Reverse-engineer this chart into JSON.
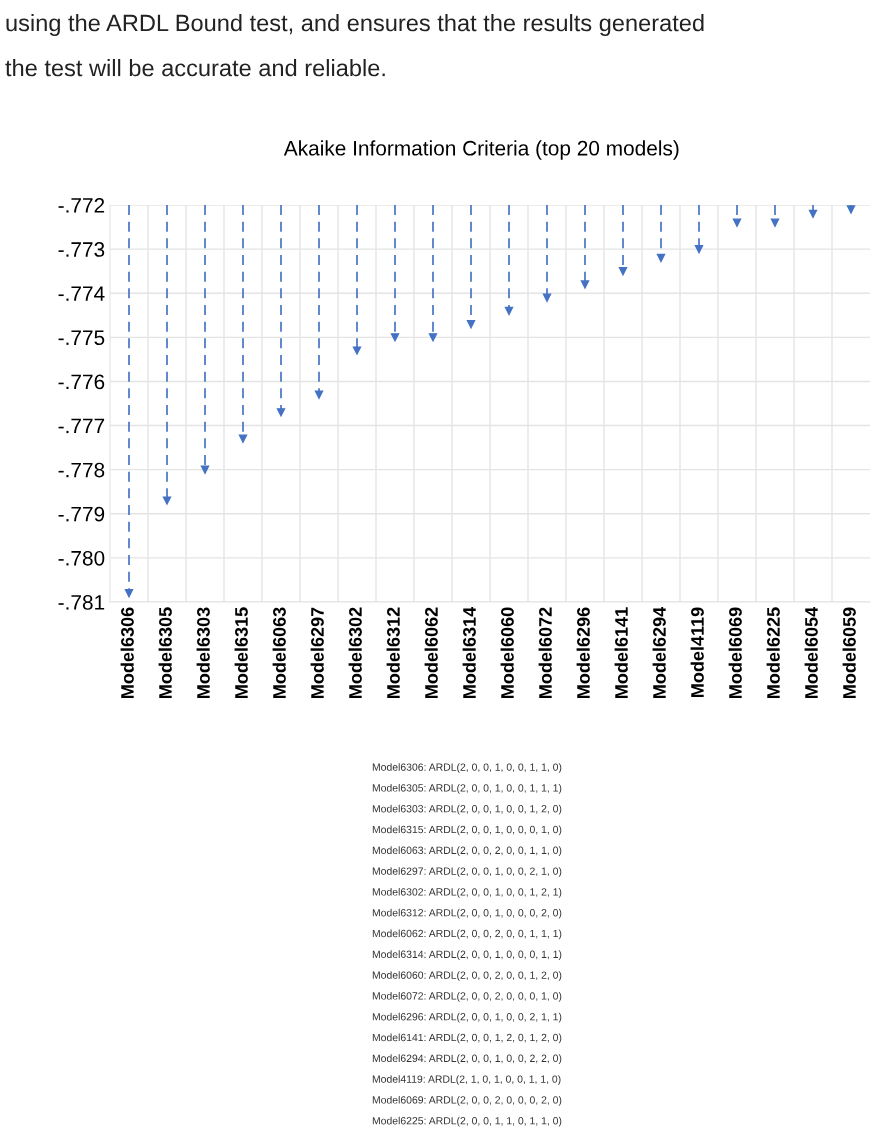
{
  "chart_data": {
    "type": "lollipop",
    "title": "Akaike Information Criteria (top 20 models)",
    "categories": [
      "Model6306",
      "Model6305",
      "Model6303",
      "Model6315",
      "Model6063",
      "Model6297",
      "Model6302",
      "Model6312",
      "Model6062",
      "Model6314",
      "Model6060",
      "Model6072",
      "Model6296",
      "Model6141",
      "Model6294",
      "Model4119",
      "Model6069",
      "Model6225",
      "Model6054",
      "Model6059"
    ],
    "values": [
      -0.7808,
      -0.7787,
      -0.778,
      -0.7773,
      -0.7767,
      -0.7763,
      -0.7753,
      -0.775,
      -0.775,
      -0.7747,
      -0.7744,
      -0.7741,
      -0.7738,
      -0.7735,
      -0.7732,
      -0.773,
      -0.7724,
      -0.7724,
      -0.7722,
      -0.7721
    ],
    "color": "#4472c4",
    "ylim": [
      -0.781,
      -0.772
    ],
    "yticks": [
      {
        "value": -0.781,
        "label": "-.781"
      },
      {
        "value": -0.78,
        "label": "-.780"
      },
      {
        "value": -0.779,
        "label": "-.779"
      },
      {
        "value": -0.778,
        "label": "-.778"
      },
      {
        "value": -0.777,
        "label": "-.777"
      },
      {
        "value": -0.776,
        "label": "-.776"
      },
      {
        "value": -0.775,
        "label": "-.775"
      },
      {
        "value": -0.774,
        "label": "-.774"
      },
      {
        "value": -0.773,
        "label": "-.773"
      },
      {
        "value": -0.772,
        "label": "-.772"
      }
    ],
    "grid": true,
    "marker": "triangle",
    "line_style": "dashed",
    "annotations": [
      "using the ARDL Bound test, and ensures that the results generated",
      "the test will be accurate and reliable.",
      "Model6306: ARDL(2, 0, 0, 1, 0, 0, 1, 1, 0)",
      "Model6305: ARDL(2, 0, 0, 1, 0, 0, 1, 1, 1)",
      "Model6303: ARDL(2, 0, 0, 1, 0, 0, 1, 2, 0)",
      "Model6315: ARDL(2, 0, 0, 1, 0, 0, 0, 1, 0)",
      "Model6063: ARDL(2, 0, 0, 2, 0, 0, 1, 1, 0)",
      "Model6297: ARDL(2, 0, 0, 1, 0, 0, 2, 1, 0)",
      "Model6302: ARDL(2, 0, 0, 1, 0, 0, 1, 2, 1)",
      "Model6312: ARDL(2, 0, 0, 1, 0, 0, 0, 2, 0)",
      "Model6062: ARDL(2, 0, 0, 2, 0, 0, 1, 1, 1)",
      "Model6314: ARDL(2, 0, 0, 1, 0, 0, 0, 1, 1)",
      "Model6060: ARDL(2, 0, 0, 2, 0, 0, 1, 2, 0)",
      "Model6072: ARDL(2, 0, 0, 2, 0, 0, 0, 1, 0)",
      "Model6296: ARDL(2, 0, 0, 1, 0, 0, 2, 1, 1)",
      "Model6141: ARDL(2, 0, 0, 1, 2, 0, 1, 2, 0)",
      "Model6294: ARDL(2, 0, 0, 1, 0, 0, 2, 2, 0)",
      "Model4119: ARDL(2, 1, 0, 1, 0, 0, 1, 1, 0)",
      "Model6069: ARDL(2, 0, 0, 2, 0, 0, 0, 2, 0)",
      "Model6225: ARDL(2, 0, 0, 1, 1, 0, 1, 1, 0)"
    ]
  }
}
